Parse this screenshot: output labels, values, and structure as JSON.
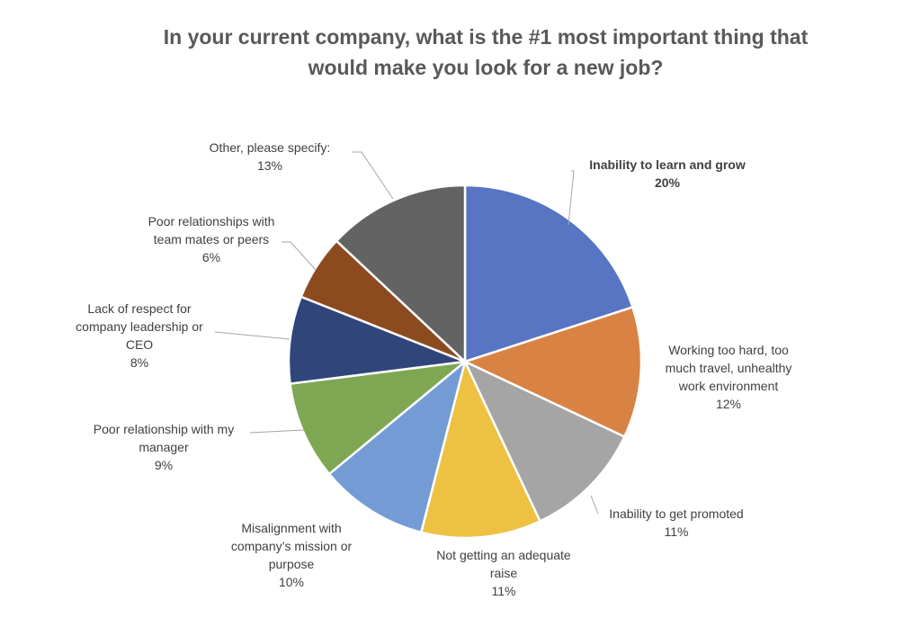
{
  "chart_data": {
    "type": "pie",
    "title_lines": [
      "In your current company, what is the #1 most important thing that",
      "would make you look for a new job?"
    ],
    "start_angle_deg": 0,
    "direction": "clockwise",
    "legend": "none",
    "slices": [
      {
        "label_lines": [
          "Inability to learn and grow"
        ],
        "value": 20,
        "value_label": "20%",
        "color": "#5875C3",
        "bold": true
      },
      {
        "label_lines": [
          "Working too hard, too",
          "much travel, unhealthy",
          "work environment"
        ],
        "value": 12,
        "value_label": "12%",
        "color": "#D88344",
        "bold": false
      },
      {
        "label_lines": [
          "Inability to get promoted"
        ],
        "value": 11,
        "value_label": "11%",
        "color": "#A5A5A5",
        "bold": false
      },
      {
        "label_lines": [
          "Not getting an adequate",
          "raise"
        ],
        "value": 11,
        "value_label": "11%",
        "color": "#EDC142",
        "bold": false
      },
      {
        "label_lines": [
          "Misalignment with",
          "company’s mission or",
          "purpose"
        ],
        "value": 10,
        "value_label": "10%",
        "color": "#739CD4",
        "bold": false
      },
      {
        "label_lines": [
          "Poor relationship with my",
          "manager"
        ],
        "value": 9,
        "value_label": "9%",
        "color": "#7FA753",
        "bold": false
      },
      {
        "label_lines": [
          "Lack of respect for",
          "company leadership or",
          "CEO"
        ],
        "value": 8,
        "value_label": "8%",
        "color": "#30457A",
        "bold": false
      },
      {
        "label_lines": [
          "Poor relationships with",
          "team mates or peers"
        ],
        "value": 6,
        "value_label": "6%",
        "color": "#8C4B1F",
        "bold": false
      },
      {
        "label_lines": [
          "Other, please specify:"
        ],
        "value": 13,
        "value_label": "13%",
        "color": "#636363",
        "bold": false
      }
    ]
  }
}
